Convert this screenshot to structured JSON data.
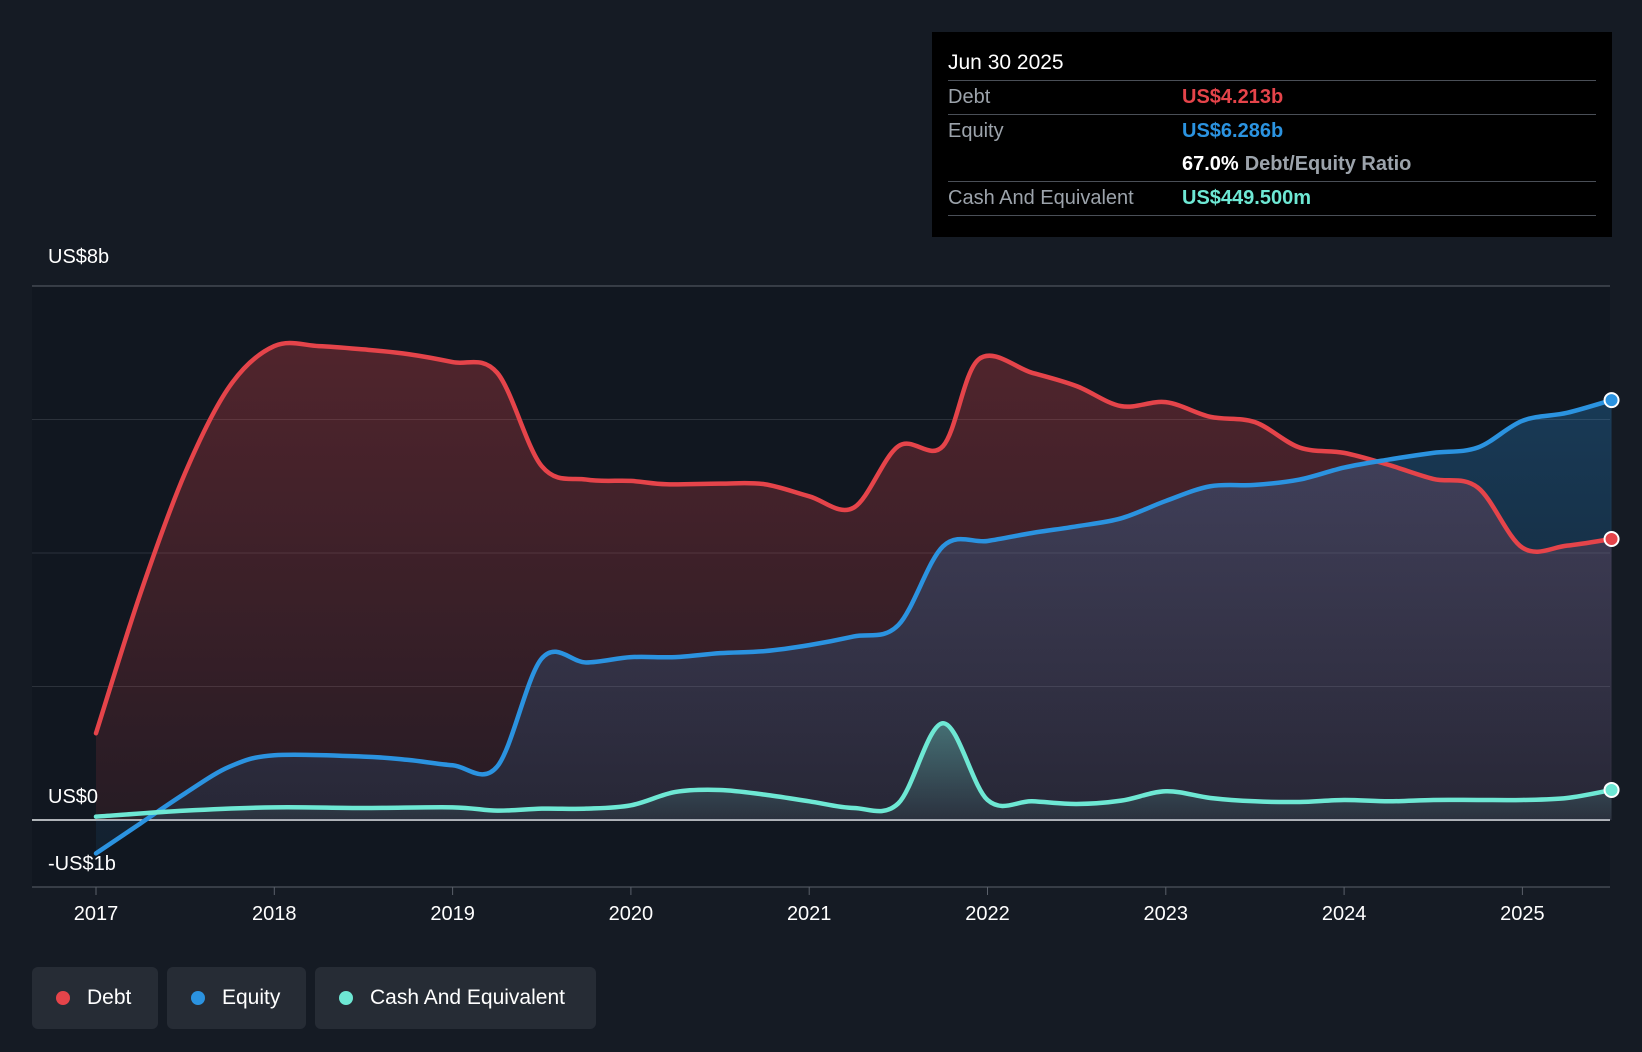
{
  "tooltip": {
    "date": "Jun 30 2025",
    "debt_label": "Debt",
    "debt_value": "US$4.213b",
    "equity_label": "Equity",
    "equity_value": "US$6.286b",
    "ratio_value": "67.0%",
    "ratio_label": "Debt/Equity Ratio",
    "cash_label": "Cash And Equivalent",
    "cash_value": "US$449.500m"
  },
  "legend": [
    {
      "label": "Debt",
      "color": "#e5444a"
    },
    {
      "label": "Equity",
      "color": "#2b93e0"
    },
    {
      "label": "Cash And Equivalent",
      "color": "#6ee8d4"
    }
  ],
  "chart_data": {
    "type": "area",
    "y_tick_labels": {
      "top": "US$8b",
      "zero": "US$0",
      "bottom": "-US$1b"
    },
    "ylim": [
      -1,
      8
    ],
    "xlim": [
      2017,
      2025.5
    ],
    "x_ticks": [
      2017,
      2018,
      2019,
      2020,
      2021,
      2022,
      2023,
      2024,
      2025
    ],
    "grid": true,
    "legend_position": "bottom-left",
    "series": [
      {
        "name": "Debt",
        "color": "#e5444a",
        "points": [
          [
            2017.0,
            1.3
          ],
          [
            2017.25,
            3.4
          ],
          [
            2017.5,
            5.2
          ],
          [
            2017.75,
            6.5
          ],
          [
            2018.0,
            7.1
          ],
          [
            2018.25,
            7.1
          ],
          [
            2018.5,
            7.05
          ],
          [
            2018.75,
            6.98
          ],
          [
            2019.0,
            6.86
          ],
          [
            2019.25,
            6.7
          ],
          [
            2019.5,
            5.3
          ],
          [
            2019.75,
            5.1
          ],
          [
            2020.0,
            5.08
          ],
          [
            2020.2,
            5.03
          ],
          [
            2020.5,
            5.04
          ],
          [
            2020.75,
            5.03
          ],
          [
            2021.0,
            4.85
          ],
          [
            2021.25,
            4.68
          ],
          [
            2021.5,
            5.6
          ],
          [
            2021.75,
            5.6
          ],
          [
            2021.95,
            6.9
          ],
          [
            2022.25,
            6.7
          ],
          [
            2022.5,
            6.5
          ],
          [
            2022.75,
            6.2
          ],
          [
            2023.0,
            6.26
          ],
          [
            2023.25,
            6.04
          ],
          [
            2023.5,
            5.96
          ],
          [
            2023.75,
            5.58
          ],
          [
            2024.0,
            5.5
          ],
          [
            2024.25,
            5.32
          ],
          [
            2024.5,
            5.11
          ],
          [
            2024.75,
            4.98
          ],
          [
            2025.0,
            4.08
          ],
          [
            2025.25,
            4.11
          ],
          [
            2025.5,
            4.21
          ]
        ]
      },
      {
        "name": "Equity",
        "color": "#2b93e0",
        "points": [
          [
            2017.0,
            -0.5
          ],
          [
            2017.25,
            -0.05
          ],
          [
            2017.5,
            0.4
          ],
          [
            2017.75,
            0.8
          ],
          [
            2018.0,
            0.97
          ],
          [
            2018.5,
            0.95
          ],
          [
            2018.75,
            0.9
          ],
          [
            2019.0,
            0.82
          ],
          [
            2019.25,
            0.8
          ],
          [
            2019.5,
            2.42
          ],
          [
            2019.75,
            2.36
          ],
          [
            2020.0,
            2.44
          ],
          [
            2020.25,
            2.44
          ],
          [
            2020.5,
            2.5
          ],
          [
            2020.75,
            2.53
          ],
          [
            2021.0,
            2.62
          ],
          [
            2021.25,
            2.75
          ],
          [
            2021.5,
            2.92
          ],
          [
            2021.75,
            4.1
          ],
          [
            2022.0,
            4.18
          ],
          [
            2022.25,
            4.3
          ],
          [
            2022.5,
            4.4
          ],
          [
            2022.75,
            4.52
          ],
          [
            2023.0,
            4.78
          ],
          [
            2023.25,
            5.0
          ],
          [
            2023.5,
            5.02
          ],
          [
            2023.75,
            5.1
          ],
          [
            2024.0,
            5.28
          ],
          [
            2024.25,
            5.4
          ],
          [
            2024.5,
            5.5
          ],
          [
            2024.75,
            5.58
          ],
          [
            2025.0,
            5.98
          ],
          [
            2025.25,
            6.1
          ],
          [
            2025.5,
            6.29
          ]
        ]
      },
      {
        "name": "Cash And Equivalent",
        "color": "#6ee8d4",
        "points": [
          [
            2017.0,
            0.05
          ],
          [
            2017.5,
            0.14
          ],
          [
            2018.0,
            0.19
          ],
          [
            2018.5,
            0.18
          ],
          [
            2019.0,
            0.19
          ],
          [
            2019.25,
            0.14
          ],
          [
            2019.5,
            0.17
          ],
          [
            2019.75,
            0.17
          ],
          [
            2020.0,
            0.22
          ],
          [
            2020.25,
            0.42
          ],
          [
            2020.5,
            0.45
          ],
          [
            2020.75,
            0.38
          ],
          [
            2021.0,
            0.28
          ],
          [
            2021.25,
            0.18
          ],
          [
            2021.5,
            0.25
          ],
          [
            2021.75,
            1.45
          ],
          [
            2022.0,
            0.3
          ],
          [
            2022.25,
            0.28
          ],
          [
            2022.5,
            0.24
          ],
          [
            2022.75,
            0.29
          ],
          [
            2023.0,
            0.43
          ],
          [
            2023.25,
            0.33
          ],
          [
            2023.5,
            0.28
          ],
          [
            2023.75,
            0.27
          ],
          [
            2024.0,
            0.3
          ],
          [
            2024.25,
            0.28
          ],
          [
            2024.5,
            0.3
          ],
          [
            2024.75,
            0.3
          ],
          [
            2025.0,
            0.3
          ],
          [
            2025.25,
            0.33
          ],
          [
            2025.5,
            0.45
          ]
        ]
      }
    ]
  }
}
